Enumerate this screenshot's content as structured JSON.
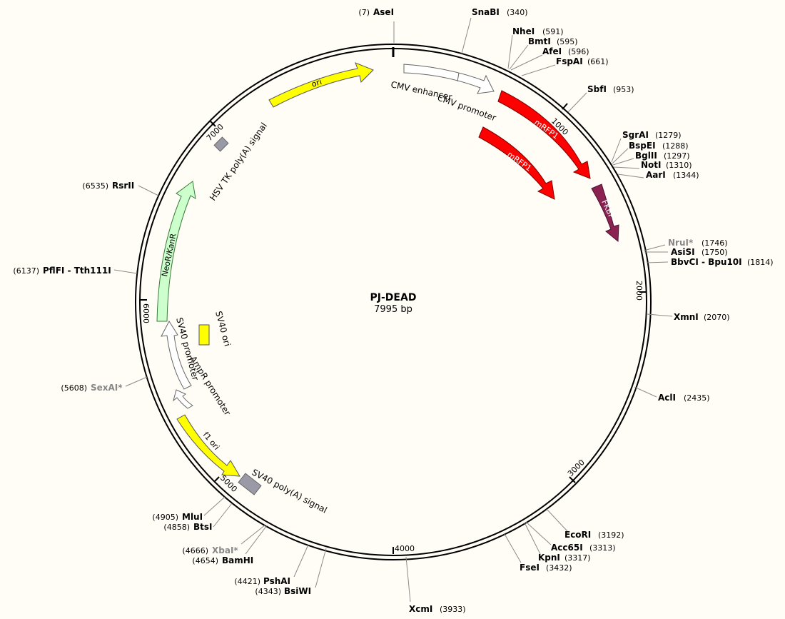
{
  "plasmid": {
    "name": "PJ-DEAD",
    "length_text": "7995 bp",
    "length": 7995
  },
  "colors": {
    "background": "#fffdf6",
    "backbone": "#000000",
    "red": "#ff0000",
    "yellow": "#ffff00",
    "purple": "#8b2252",
    "light_green": "#ccffcc",
    "white": "#ffffff",
    "grey": "#999aa5"
  },
  "ticks": [
    {
      "bp": 1000,
      "label": "1000"
    },
    {
      "bp": 2000,
      "label": "2000"
    },
    {
      "bp": 3000,
      "label": "3000"
    },
    {
      "bp": 4000,
      "label": "4000"
    },
    {
      "bp": 5000,
      "label": "5000"
    },
    {
      "bp": 6000,
      "label": "6000"
    },
    {
      "bp": 7000,
      "label": "7000"
    }
  ],
  "features": [
    {
      "label": "ori",
      "type": "arrow",
      "color": "#ffff00",
      "text_color": "#000000"
    },
    {
      "label": "CMV enhancer",
      "type": "arrow",
      "color": "#ffffff",
      "text_color": "#000000"
    },
    {
      "label": "CMV promoter",
      "type": "arrow",
      "color": "#ffffff",
      "text_color": "#000000"
    },
    {
      "label": "mRFP1",
      "type": "arrow",
      "color": "#ff0000",
      "text_color": "#ffffff"
    },
    {
      "label": "mRFP1",
      "type": "arrow",
      "color": "#ff0000",
      "text_color": "#ffffff"
    },
    {
      "label": "FKBP",
      "type": "arrow",
      "color": "#8b2252",
      "text_color": "#ffffff"
    },
    {
      "label": "HSV TK poly(A) signal",
      "type": "box",
      "color": "#999aa5",
      "text_color": "#000000"
    },
    {
      "label": "NeoR/KanR",
      "type": "arrow",
      "color": "#ccffcc",
      "text_color": "#000000"
    },
    {
      "label": "SV40 ori",
      "type": "box",
      "color": "#ffff00",
      "text_color": "#000000"
    },
    {
      "label": "SV40 promoter",
      "type": "arrow",
      "color": "#ffffff",
      "text_color": "#000000"
    },
    {
      "label": "AmpR promoter",
      "type": "arrow",
      "color": "#ffffff",
      "text_color": "#000000"
    },
    {
      "label": "f1 ori",
      "type": "arrow",
      "color": "#ffff00",
      "text_color": "#000000"
    },
    {
      "label": "SV40 poly(A) signal",
      "type": "box",
      "color": "#999aa5",
      "text_color": "#000000"
    }
  ],
  "sites": [
    {
      "name": "AseI",
      "pos": "(7)",
      "bp": 7,
      "grey": false
    },
    {
      "name": "SnaBI",
      "pos": "(340)",
      "bp": 340,
      "grey": false
    },
    {
      "name": "NheI",
      "pos": "(591)",
      "bp": 591,
      "grey": false
    },
    {
      "name": "BmtI",
      "pos": "(595)",
      "bp": 595,
      "grey": false
    },
    {
      "name": "AfeI",
      "pos": "(596)",
      "bp": 596,
      "grey": false
    },
    {
      "name": "FspAI",
      "pos": "(661)",
      "bp": 661,
      "grey": false
    },
    {
      "name": "SbfI",
      "pos": "(953)",
      "bp": 953,
      "grey": false
    },
    {
      "name": "SgrAI",
      "pos": "(1279)",
      "bp": 1279,
      "grey": false
    },
    {
      "name": "BspEI",
      "pos": "(1288)",
      "bp": 1288,
      "grey": false
    },
    {
      "name": "BglII",
      "pos": "(1297)",
      "bp": 1297,
      "grey": false
    },
    {
      "name": "NotI",
      "pos": "(1310)",
      "bp": 1310,
      "grey": false
    },
    {
      "name": "AarI",
      "pos": "(1344)",
      "bp": 1344,
      "grey": false
    },
    {
      "name": "NruI*",
      "pos": "(1746)",
      "bp": 1746,
      "grey": true
    },
    {
      "name": "AsiSI",
      "pos": "(1750)",
      "bp": 1750,
      "grey": false
    },
    {
      "name": "BbvCI - Bpu10I",
      "pos": "(1814)",
      "bp": 1814,
      "grey": false
    },
    {
      "name": "XmnI",
      "pos": "(2070)",
      "bp": 2070,
      "grey": false
    },
    {
      "name": "AclI",
      "pos": "(2435)",
      "bp": 2435,
      "grey": false
    },
    {
      "name": "EcoRI",
      "pos": "(3192)",
      "bp": 3192,
      "grey": false
    },
    {
      "name": "Acc65I",
      "pos": "(3313)",
      "bp": 3313,
      "grey": false
    },
    {
      "name": "KpnI",
      "pos": "(3317)",
      "bp": 3317,
      "grey": false
    },
    {
      "name": "FseI",
      "pos": "(3432)",
      "bp": 3432,
      "grey": false
    },
    {
      "name": "XcmI",
      "pos": "(3933)",
      "bp": 3933,
      "grey": false
    },
    {
      "name": "BsiWI",
      "pos": "(4343)",
      "bp": 4343,
      "grey": false
    },
    {
      "name": "PshAI",
      "pos": "(4421)",
      "bp": 4421,
      "grey": false
    },
    {
      "name": "BamHI",
      "pos": "(4654)",
      "bp": 4654,
      "grey": false
    },
    {
      "name": "XbaI*",
      "pos": "(4666)",
      "bp": 4666,
      "grey": true
    },
    {
      "name": "BtsI",
      "pos": "(4858)",
      "bp": 4858,
      "grey": false
    },
    {
      "name": "MluI",
      "pos": "(4905)",
      "bp": 4905,
      "grey": false
    },
    {
      "name": "SexAI*",
      "pos": "(5608)",
      "bp": 5608,
      "grey": true
    },
    {
      "name": "PflFI - Tth111I",
      "pos": "(6137)",
      "bp": 6137,
      "grey": false
    },
    {
      "name": "RsrII",
      "pos": "(6535)",
      "bp": 6535,
      "grey": false
    }
  ]
}
